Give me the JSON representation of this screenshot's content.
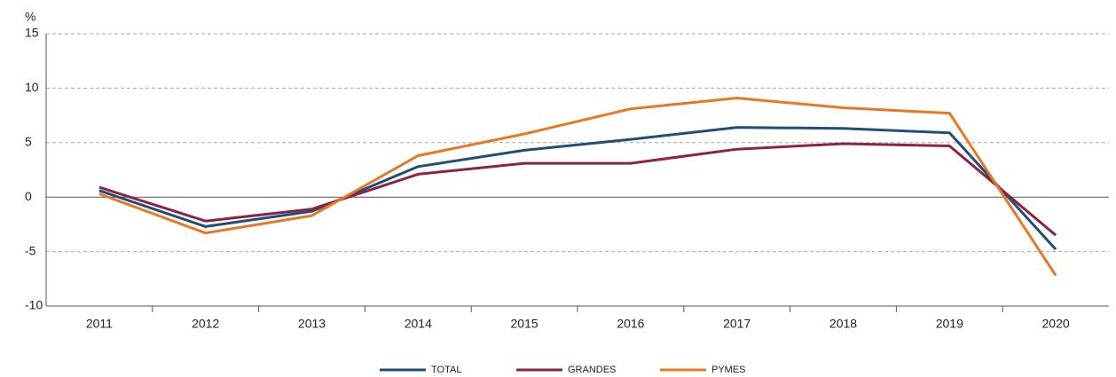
{
  "chart_data": {
    "type": "line",
    "y_label": "%",
    "categories": [
      "2011",
      "2012",
      "2013",
      "2014",
      "2015",
      "2016",
      "2017",
      "2018",
      "2019",
      "2020"
    ],
    "series": [
      {
        "name": "TOTAL",
        "color": "#1f4e79",
        "values": [
          0.6,
          -2.7,
          -1.3,
          2.8,
          4.3,
          5.3,
          6.4,
          6.3,
          5.9,
          -4.8
        ]
      },
      {
        "name": "GRANDES",
        "color": "#8b2346",
        "values": [
          0.9,
          -2.2,
          -1.1,
          2.1,
          3.1,
          3.1,
          4.4,
          4.9,
          4.7,
          -3.5
        ]
      },
      {
        "name": "PYMES",
        "color": "#e87722",
        "values": [
          0.3,
          -3.3,
          -1.7,
          3.8,
          5.8,
          8.1,
          9.1,
          8.2,
          7.7,
          -7.2
        ]
      }
    ],
    "ylim": [
      -10,
      15
    ],
    "yticks": [
      -10,
      -5,
      0,
      5,
      10,
      15
    ],
    "grid": true,
    "legend": "bottom"
  }
}
